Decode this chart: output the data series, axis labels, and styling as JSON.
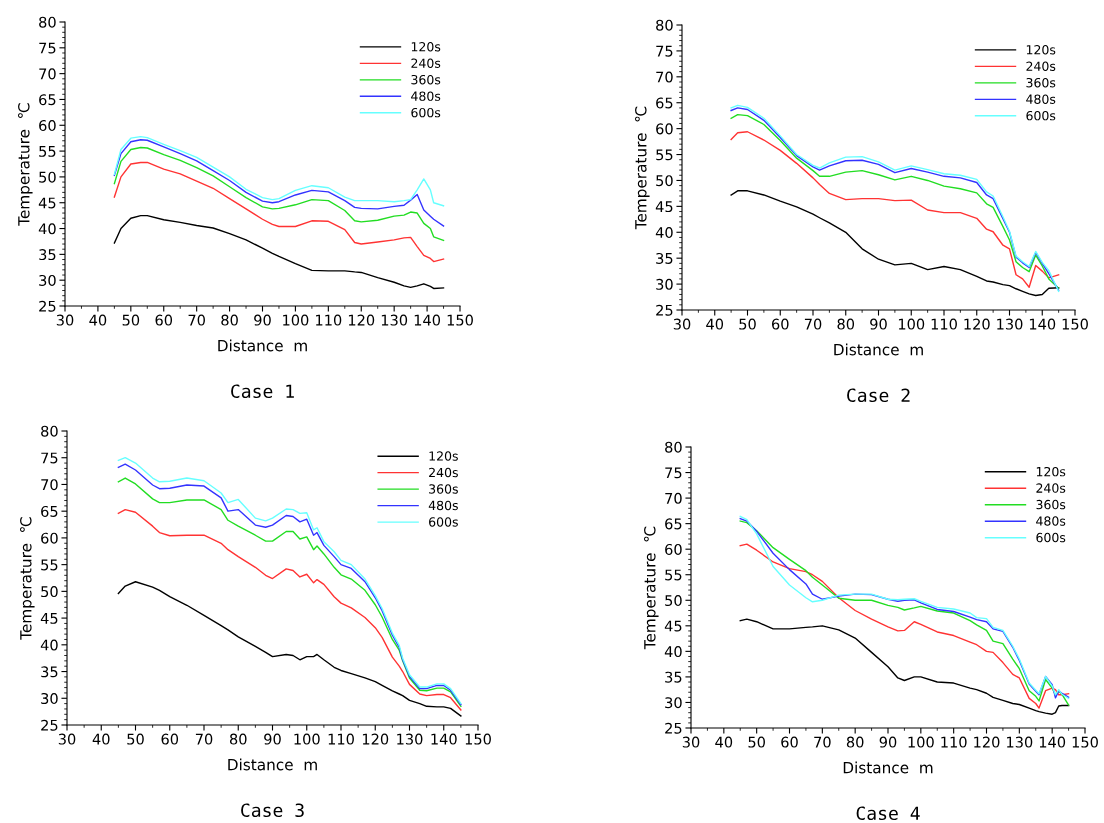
{
  "chart_data": [
    {
      "type": "line",
      "title": "Case 1",
      "xlabel": "Distance  m",
      "ylabel": "Temperature  ℃",
      "xlim": [
        30,
        150
      ],
      "ylim": [
        25,
        80
      ],
      "xticks": [
        30,
        40,
        50,
        60,
        70,
        80,
        90,
        100,
        110,
        120,
        130,
        140,
        150
      ],
      "yticks": [
        25,
        30,
        35,
        40,
        45,
        50,
        55,
        60,
        65,
        70,
        75,
        80
      ],
      "legend": "top right",
      "grid": false,
      "x": [
        45,
        47,
        50,
        53,
        55,
        60,
        65,
        70,
        75,
        80,
        85,
        90,
        93,
        95,
        100,
        105,
        110,
        115,
        118,
        120,
        125,
        130,
        133,
        135,
        137,
        139,
        141,
        142,
        145
      ],
      "series": [
        {
          "name": "120s",
          "color": "#000000",
          "values": [
            37.2,
            40,
            42,
            42.5,
            42.5,
            41.7,
            41.2,
            40.6,
            40.1,
            39,
            37.8,
            36.2,
            35.2,
            34.6,
            33.2,
            31.9,
            31.8,
            31.8,
            31.6,
            31.5,
            30.5,
            29.6,
            28.9,
            28.6,
            28.9,
            29.3,
            28.8,
            28.4,
            28.5
          ]
        },
        {
          "name": "240s",
          "color": "#ff3333",
          "values": [
            46.1,
            50,
            52.5,
            52.8,
            52.8,
            51.5,
            50.6,
            49.2,
            47.8,
            45.8,
            43.8,
            41.8,
            40.8,
            40.4,
            40.4,
            41.5,
            41.4,
            39.8,
            37.3,
            37,
            37.4,
            37.8,
            38.2,
            38.3,
            36.5,
            34.8,
            34.2,
            33.6,
            34.1
          ]
        },
        {
          "name": "360s",
          "color": "#22dd22",
          "values": [
            48.7,
            53,
            55.3,
            55.7,
            55.6,
            54.3,
            53.2,
            51.8,
            50.2,
            48.1,
            46,
            44.2,
            43.8,
            43.9,
            44.6,
            45.6,
            45.4,
            43.5,
            41.5,
            41.3,
            41.6,
            42.4,
            42.6,
            43.2,
            43,
            41,
            40,
            38.4,
            37.7
          ]
        },
        {
          "name": "480s",
          "color": "#3333ff",
          "values": [
            50.3,
            54.5,
            56.8,
            57.2,
            57.1,
            55.8,
            54.5,
            53.1,
            51.2,
            49.3,
            47,
            45.3,
            45,
            45.2,
            46.5,
            47.4,
            47.1,
            45.4,
            44.1,
            43.9,
            43.8,
            44.3,
            44.5,
            45.5,
            46.6,
            43.6,
            42.4,
            41.8,
            40.5
          ]
        },
        {
          "name": "600s",
          "color": "#66ffff",
          "values": [
            50.5,
            55.3,
            57.5,
            57.8,
            57.6,
            56.3,
            55.1,
            53.8,
            51.9,
            50,
            47.6,
            46,
            45.6,
            45.8,
            47.4,
            48.3,
            47.9,
            46.1,
            45.4,
            45.4,
            45.4,
            45.2,
            45.4,
            45.6,
            47.5,
            49.6,
            47.5,
            45,
            44.4
          ]
        }
      ]
    },
    {
      "type": "line",
      "title": "Case 2",
      "xlabel": "Distance  m",
      "ylabel": "Temperature  ℃",
      "xlim": [
        30,
        150
      ],
      "ylim": [
        25,
        80
      ],
      "xticks": [
        30,
        40,
        50,
        60,
        70,
        80,
        90,
        100,
        110,
        120,
        130,
        140,
        150
      ],
      "yticks": [
        25,
        30,
        35,
        40,
        45,
        50,
        55,
        60,
        65,
        70,
        75,
        80
      ],
      "legend": "top right",
      "grid": false,
      "x": [
        45,
        47,
        50,
        55,
        60,
        65,
        70,
        72,
        75,
        80,
        85,
        90,
        95,
        100,
        105,
        110,
        115,
        120,
        123,
        125,
        128,
        130,
        132,
        134,
        136,
        138,
        140,
        142,
        145
      ],
      "series": [
        {
          "name": "120s",
          "color": "#000000",
          "values": [
            47.2,
            48,
            48,
            47.2,
            46,
            44.9,
            43.5,
            42.8,
            41.8,
            40,
            36.8,
            34.8,
            33.7,
            34,
            32.8,
            33.4,
            32.8,
            31.5,
            30.6,
            30.4,
            29.9,
            29.7,
            29.1,
            28.6,
            28.1,
            27.8,
            28,
            29.2,
            29.3
          ]
        },
        {
          "name": "240s",
          "color": "#ff3333",
          "values": [
            57.9,
            59.2,
            59.4,
            57.8,
            55.8,
            53.3,
            50.5,
            49.2,
            47.5,
            46.3,
            46.5,
            46.5,
            46.1,
            46.2,
            44.3,
            43.8,
            43.8,
            42.7,
            40.6,
            40.1,
            37.5,
            36.8,
            31.8,
            31,
            29.4,
            33.6,
            32.5,
            31.2,
            31.8
          ]
        },
        {
          "name": "360s",
          "color": "#22dd22",
          "values": [
            62,
            62.7,
            62.5,
            60.8,
            57.7,
            54.3,
            51.9,
            50.8,
            50.8,
            51.6,
            51.9,
            51.1,
            50.1,
            50.8,
            50,
            48.9,
            48.4,
            47.6,
            45.5,
            44.8,
            41.1,
            38.5,
            34.3,
            33.2,
            32.4,
            35.6,
            33.5,
            31,
            29.2
          ]
        },
        {
          "name": "480s",
          "color": "#3333ff",
          "values": [
            63.5,
            64,
            63.7,
            61.6,
            58.3,
            54.8,
            52.6,
            52,
            52.8,
            53.8,
            53.9,
            53.1,
            51.5,
            52.3,
            51.6,
            50.8,
            50.5,
            49.6,
            47.2,
            46.5,
            42.6,
            40,
            35.2,
            34.1,
            33.2,
            36.1,
            34,
            32,
            28.8
          ]
        },
        {
          "name": "600s",
          "color": "#66ffff",
          "values": [
            64,
            64.5,
            64.1,
            62,
            58.6,
            55,
            52.9,
            52.4,
            53.4,
            54.5,
            54.6,
            53.6,
            52,
            52.8,
            52.1,
            51.3,
            51,
            50.2,
            47.8,
            47,
            43,
            40.2,
            35.4,
            34.3,
            33.4,
            36.3,
            34.2,
            32.6,
            28.6
          ]
        }
      ]
    },
    {
      "type": "line",
      "title": "Case 3",
      "xlabel": "Distance  m",
      "ylabel": "Temperature  ℃",
      "xlim": [
        30,
        150
      ],
      "ylim": [
        25,
        80
      ],
      "xticks": [
        30,
        40,
        50,
        60,
        70,
        80,
        90,
        100,
        110,
        120,
        130,
        140,
        150
      ],
      "yticks": [
        25,
        30,
        35,
        40,
        45,
        50,
        55,
        60,
        65,
        70,
        75,
        80
      ],
      "legend": "top right",
      "grid": false,
      "x": [
        45,
        47,
        50,
        55,
        57,
        60,
        65,
        70,
        75,
        77,
        80,
        85,
        88,
        90,
        94,
        96,
        98,
        100,
        102,
        103,
        105,
        108,
        110,
        113,
        117,
        120,
        122,
        125,
        127,
        128,
        130,
        133,
        135,
        138,
        140,
        142,
        145
      ],
      "series": [
        {
          "name": "120s",
          "color": "#000000",
          "values": [
            49.6,
            51,
            51.8,
            50.8,
            50.2,
            49,
            47.4,
            45.5,
            43.6,
            42.8,
            41.5,
            39.7,
            38.6,
            37.8,
            38.2,
            38,
            37.2,
            37.8,
            37.8,
            38.2,
            37.2,
            35.8,
            35.2,
            34.6,
            33.8,
            33.1,
            32.4,
            31.4,
            30.8,
            30.5,
            29.6,
            29,
            28.5,
            28.4,
            28.4,
            28.1,
            26.7
          ]
        },
        {
          "name": "240s",
          "color": "#ff3333",
          "values": [
            64.6,
            65.3,
            64.8,
            62.2,
            61,
            60.4,
            60.5,
            60.5,
            59,
            57.8,
            56.5,
            54.5,
            53,
            52.4,
            54.2,
            53.9,
            52.7,
            53.2,
            51.6,
            52.2,
            51.3,
            49,
            47.8,
            46.9,
            45.1,
            43.2,
            41.4,
            37.7,
            36,
            35,
            32.6,
            30.8,
            30.5,
            30.7,
            30.7,
            30.1,
            27.8
          ]
        },
        {
          "name": "360s",
          "color": "#22dd22",
          "values": [
            70.5,
            71.2,
            70.1,
            67.3,
            66.6,
            66.6,
            67.1,
            67.1,
            65.3,
            63.3,
            62.2,
            60.5,
            59.4,
            59.4,
            61.2,
            61.2,
            59.8,
            60.2,
            57.8,
            58.5,
            57,
            54.5,
            53.1,
            52.3,
            50.2,
            47.5,
            45.2,
            41,
            39,
            37,
            33.8,
            31.5,
            31.4,
            31.9,
            31.9,
            31.2,
            28.5
          ]
        },
        {
          "name": "480s",
          "color": "#3333ff",
          "values": [
            73.2,
            73.8,
            72.7,
            69.9,
            69.2,
            69.3,
            69.9,
            69.7,
            67.5,
            65,
            65.3,
            62.4,
            62,
            62.4,
            64.2,
            64,
            63,
            63.5,
            60.5,
            61,
            58.6,
            56.5,
            55,
            54.3,
            51.8,
            48.8,
            46.4,
            41.8,
            39.5,
            37.2,
            34.1,
            31.8,
            31.8,
            32.4,
            32.4,
            31.5,
            28.8
          ]
        },
        {
          "name": "600s",
          "color": "#66ffff",
          "values": [
            74.5,
            75,
            74,
            71.2,
            70.5,
            70.6,
            71.2,
            70.7,
            68.4,
            66.6,
            67.2,
            63.7,
            63.2,
            63.7,
            65.4,
            65.3,
            64.6,
            64.7,
            61.5,
            61.9,
            59.3,
            57.4,
            55.8,
            55,
            52.3,
            49.2,
            46.8,
            42.2,
            39.9,
            37.5,
            34.4,
            32.1,
            32.1,
            32.7,
            32.7,
            31.8,
            29
          ]
        }
      ]
    },
    {
      "type": "line",
      "title": "Case 4",
      "xlabel": "Distance  m",
      "ylabel": "Temperature  ℃",
      "xlim": [
        30,
        150
      ],
      "ylim": [
        25,
        80
      ],
      "xticks": [
        30,
        40,
        50,
        60,
        70,
        80,
        90,
        100,
        110,
        120,
        130,
        140,
        150
      ],
      "yticks": [
        25,
        30,
        35,
        40,
        45,
        50,
        55,
        60,
        65,
        70,
        75,
        80
      ],
      "legend": "top right",
      "grid": false,
      "x": [
        45,
        47,
        50,
        55,
        60,
        65,
        67,
        70,
        75,
        80,
        85,
        90,
        93,
        95,
        98,
        100,
        105,
        110,
        115,
        117,
        120,
        122,
        125,
        128,
        130,
        133,
        135,
        136,
        138,
        140,
        141,
        142,
        143,
        145
      ],
      "series": [
        {
          "name": "120s",
          "color": "#000000",
          "values": [
            46,
            46.3,
            45.8,
            44.4,
            44.4,
            44.7,
            44.8,
            45,
            44.2,
            42.6,
            39.8,
            37,
            34.8,
            34.3,
            35,
            35,
            34,
            33.8,
            32.8,
            32.5,
            31.8,
            31,
            30.4,
            29.8,
            29.6,
            28.9,
            28.4,
            28.2,
            27.9,
            27.7,
            28,
            29.3,
            29.4,
            29.4
          ]
        },
        {
          "name": "240s",
          "color": "#ff3333",
          "values": [
            60.7,
            61,
            59.8,
            57.5,
            56.2,
            55.6,
            55,
            53.7,
            50.5,
            48,
            46.3,
            44.8,
            44,
            44.1,
            45.8,
            45.3,
            43.8,
            43.1,
            41.8,
            41.3,
            40,
            39.8,
            37.8,
            35.5,
            34.8,
            30.8,
            29.8,
            28.9,
            32.3,
            32.8,
            32.5,
            31.5,
            31.5,
            31.7
          ]
        },
        {
          "name": "360s",
          "color": "#22dd22",
          "values": [
            65.5,
            65.2,
            63.6,
            60.3,
            58,
            55.8,
            54.5,
            53,
            50.4,
            50,
            50,
            49,
            48.6,
            48.1,
            48.5,
            48.8,
            47.9,
            47.5,
            46,
            45.2,
            44.1,
            42,
            41.5,
            38.5,
            36.6,
            32.3,
            31.2,
            30.3,
            34.5,
            32.8,
            31.5,
            32.2,
            31.6,
            29.5
          ]
        },
        {
          "name": "480s",
          "color": "#3333ff",
          "values": [
            66,
            65.5,
            63.5,
            59.2,
            56,
            53.2,
            51.2,
            50.2,
            50.8,
            51.2,
            51.1,
            50.2,
            49.8,
            50,
            50.1,
            49.5,
            48.2,
            47.8,
            46.7,
            46.2,
            45.8,
            44.4,
            43.9,
            40.8,
            38.2,
            33.6,
            32.2,
            31.5,
            35.1,
            33.5,
            30.9,
            32.3,
            31.8,
            31
          ]
        },
        {
          "name": "600s",
          "color": "#66ffff",
          "values": [
            66.4,
            65.8,
            63,
            56.6,
            53,
            50.5,
            49.7,
            50,
            51,
            51.2,
            51.2,
            50.2,
            50.1,
            50.2,
            50.3,
            49.8,
            48.6,
            48.3,
            47.5,
            46.6,
            46.4,
            44.7,
            44.1,
            41,
            38.5,
            33.8,
            32.4,
            31.7,
            35.1,
            33.2,
            31.5,
            32.5,
            31.6,
            30.8
          ]
        }
      ]
    }
  ]
}
